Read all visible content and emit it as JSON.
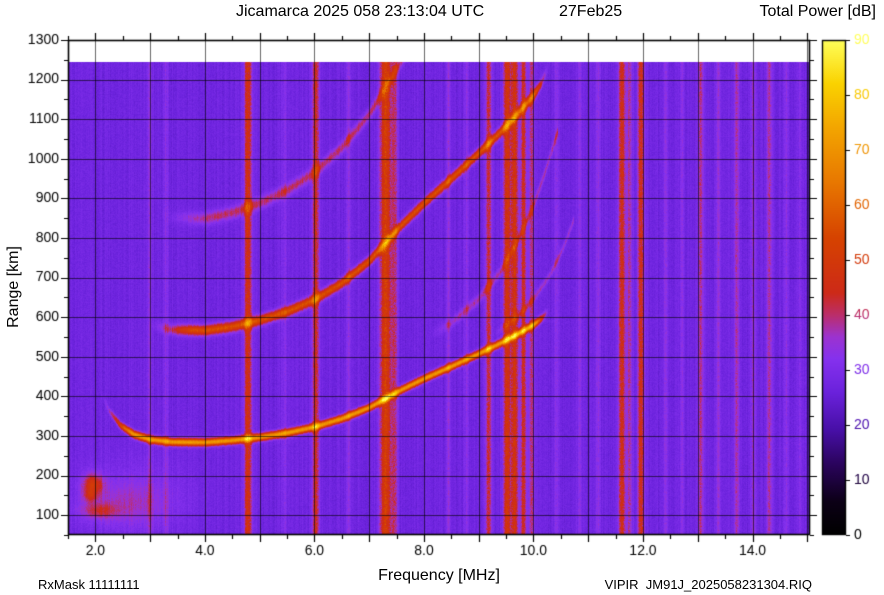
{
  "chart_data": {
    "type": "heatmap",
    "title": "Jicamarca 2025 058 23:13:04 UTC",
    "date_label": "27Feb25",
    "colorbar_label": "Total Power [dB]",
    "xlabel": "Frequency [MHz]",
    "ylabel": "Range [km]",
    "footer_left": "RxMask 11111111",
    "footer_right": "VIPIR  JM91J_2025058231304.RIQ",
    "x_range": [
      1.5,
      15.05
    ],
    "y_range": [
      50,
      1300
    ],
    "x_ticks": {
      "values": [
        2,
        4,
        6,
        8,
        10,
        12,
        14
      ],
      "labels": [
        "2.0",
        "4.0",
        "6.0",
        "8.0",
        "10.0",
        "12.0",
        "14.0"
      ]
    },
    "y_ticks": {
      "values": [
        100,
        200,
        300,
        400,
        500,
        600,
        700,
        800,
        900,
        1000,
        1100,
        1200,
        1300
      ],
      "labels": [
        "100",
        "200",
        "300",
        "400",
        "500",
        "600",
        "700",
        "800",
        "900",
        "1000",
        "1100",
        "1200",
        "1300"
      ]
    },
    "colorbar": {
      "min": 0,
      "max": 90,
      "tick_values": [
        0,
        10,
        20,
        30,
        40,
        50,
        60,
        70,
        80,
        90
      ],
      "tick_labels": [
        "0",
        "10",
        "20",
        "30",
        "40",
        "50",
        "60",
        "70",
        "80",
        "90"
      ]
    },
    "grid": {
      "x_step": 1,
      "y_step": 100,
      "x_minor_step": 0.5,
      "y_minor_step": 50,
      "color": "rgba(0,0,0,0.6)"
    },
    "colormap": [
      [
        0,
        "#000000"
      ],
      [
        6,
        "#0c0016"
      ],
      [
        13,
        "#2b045e"
      ],
      [
        19,
        "#470fa6"
      ],
      [
        26,
        "#6b22dc"
      ],
      [
        32,
        "#8531ee"
      ],
      [
        36,
        "#9c33d0"
      ],
      [
        40,
        "#bb2e6a"
      ],
      [
        44,
        "#cd2a18"
      ],
      [
        54,
        "#d64300"
      ],
      [
        64,
        "#e87700"
      ],
      [
        74,
        "#f3a500"
      ],
      [
        82,
        "#fad200"
      ],
      [
        90,
        "#ffff5a"
      ]
    ],
    "base_db": 27.5,
    "data_top_km": 1245,
    "noise": {
      "column_db": 1.3,
      "pixel_db": 1.6
    },
    "rfi_bands": [
      {
        "f": 2.98,
        "w": 0.03,
        "db": 7
      },
      {
        "f": 3.28,
        "w": 0.03,
        "db": 5
      },
      {
        "f": 4.78,
        "w": 0.05,
        "db": 20
      },
      {
        "f": 5.45,
        "w": 0.03,
        "db": 5
      },
      {
        "f": 6.02,
        "w": 0.045,
        "db": 17
      },
      {
        "f": 6.62,
        "w": 0.03,
        "db": 6
      },
      {
        "f": 7.3,
        "w": 0.075,
        "db": 24
      },
      {
        "f": 7.47,
        "w": 0.035,
        "db": 12
      },
      {
        "f": 8.45,
        "w": 0.03,
        "db": 6
      },
      {
        "f": 8.78,
        "w": 0.03,
        "db": 5
      },
      {
        "f": 9.18,
        "w": 0.04,
        "db": 15
      },
      {
        "f": 9.52,
        "w": 0.05,
        "db": 21
      },
      {
        "f": 9.66,
        "w": 0.045,
        "db": 20
      },
      {
        "f": 9.82,
        "w": 0.04,
        "db": 17
      },
      {
        "f": 9.97,
        "w": 0.035,
        "db": 13
      },
      {
        "f": 10.42,
        "w": 0.03,
        "db": 5
      },
      {
        "f": 10.85,
        "w": 0.03,
        "db": 5
      },
      {
        "f": 11.18,
        "w": 0.03,
        "db": 6
      },
      {
        "f": 11.62,
        "w": 0.045,
        "db": 19
      },
      {
        "f": 11.76,
        "w": 0.035,
        "db": 11
      },
      {
        "f": 11.97,
        "w": 0.045,
        "db": 18
      },
      {
        "f": 12.42,
        "w": 0.03,
        "db": 6
      },
      {
        "f": 12.72,
        "w": 0.03,
        "db": 5
      },
      {
        "f": 13.06,
        "w": 0.04,
        "db": 12
      },
      {
        "f": 13.38,
        "w": 0.03,
        "db": 7
      },
      {
        "f": 13.72,
        "w": 0.035,
        "db": 10
      },
      {
        "f": 14.02,
        "w": 0.03,
        "db": 8
      },
      {
        "f": 14.32,
        "w": 0.035,
        "db": 11
      },
      {
        "f": 14.62,
        "w": 0.03,
        "db": 6
      },
      {
        "f": 14.88,
        "w": 0.03,
        "db": 5
      }
    ],
    "traces": {
      "hop1_points": [
        [
          1.92,
          500
        ],
        [
          2.0,
          448
        ],
        [
          2.1,
          405
        ],
        [
          2.25,
          362
        ],
        [
          2.45,
          326
        ],
        [
          2.7,
          303
        ],
        [
          3.0,
          290
        ],
        [
          3.4,
          284
        ],
        [
          4.0,
          283
        ],
        [
          4.5,
          288
        ],
        [
          5.0,
          296
        ],
        [
          5.5,
          307
        ],
        [
          6.0,
          322
        ],
        [
          6.5,
          343
        ],
        [
          7.0,
          371
        ],
        [
          7.3,
          394
        ],
        [
          7.6,
          417
        ],
        [
          8.0,
          444
        ],
        [
          8.5,
          475
        ],
        [
          9.0,
          507
        ],
        [
          9.4,
          534
        ],
        [
          9.7,
          556
        ],
        [
          10.0,
          580
        ],
        [
          10.15,
          596
        ],
        [
          10.3,
          620
        ]
      ],
      "hops": [
        {
          "mult": 1,
          "db": 44,
          "sigma": 6.5,
          "fade_in": [
            2.05,
            2.75
          ],
          "fade_out": [
            10.0,
            10.32
          ]
        },
        {
          "mult": 2,
          "db": 29,
          "sigma": 9,
          "fade_in": [
            2.9,
            3.9
          ],
          "fade_out": [
            10.0,
            10.32
          ]
        },
        {
          "mult": 3,
          "db": 13,
          "sigma": 11,
          "fade_in": [
            3.1,
            4.2
          ],
          "fade_out": null
        }
      ],
      "extra_traces": [
        {
          "points": [
            [
              8.0,
              545
            ],
            [
              8.5,
              585
            ],
            [
              9.0,
              645
            ],
            [
              9.4,
              715
            ],
            [
              9.7,
              790
            ],
            [
              10.0,
              880
            ],
            [
              10.2,
              960
            ],
            [
              10.45,
              1070
            ]
          ],
          "db": 10,
          "sigma": 9,
          "fade_in": [
            8.0,
            8.7
          ]
        },
        {
          "points": [
            [
              9.3,
              558
            ],
            [
              9.7,
              600
            ],
            [
              10.0,
              645
            ],
            [
              10.3,
              705
            ],
            [
              10.55,
              775
            ],
            [
              10.75,
              850
            ]
          ],
          "db": 9,
          "sigma": 7,
          "fade_in": [
            9.2,
            9.6
          ]
        }
      ]
    },
    "blobs": [
      {
        "f": 1.95,
        "fs": 0.13,
        "r": 178,
        "rs": 18,
        "db": 19
      },
      {
        "f": 1.9,
        "fs": 0.1,
        "r": 148,
        "rs": 12,
        "db": 11
      },
      {
        "f": 2.05,
        "fs": 0.22,
        "r": 110,
        "rs": 13,
        "db": 11
      },
      {
        "f": 2.55,
        "fs": 0.5,
        "r": 125,
        "rs": 38,
        "db": 6
      },
      {
        "f": 2.7,
        "fs": 0.75,
        "r": 150,
        "rs": 65,
        "db": 4
      }
    ]
  }
}
